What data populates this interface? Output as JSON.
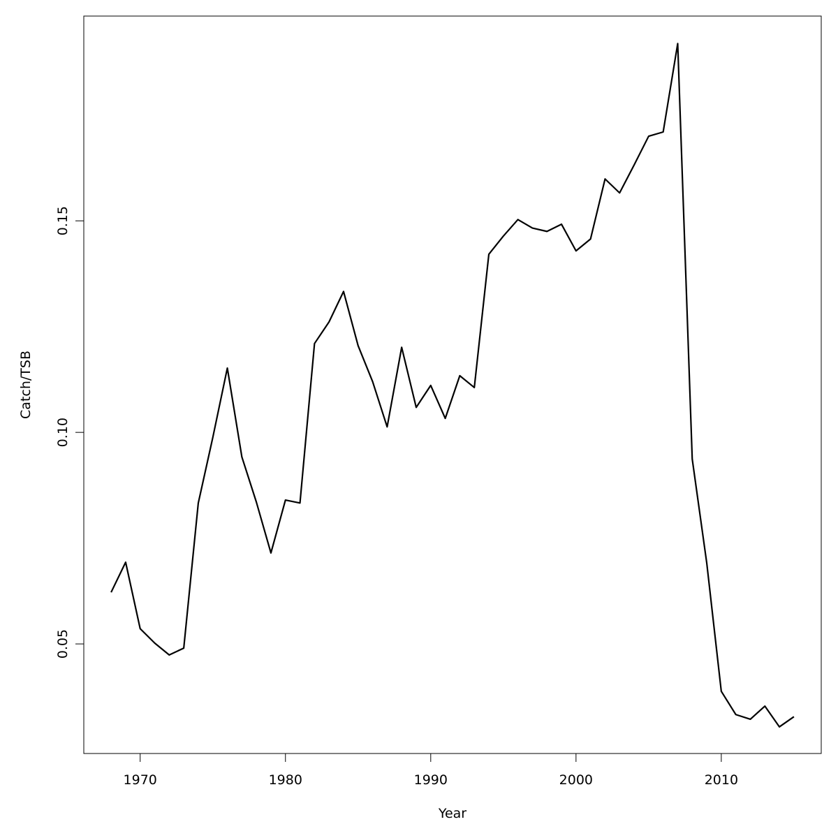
{
  "chart_data": {
    "type": "line",
    "xlabel": "Year",
    "ylabel": "Catch/TSB",
    "x": [
      1968,
      1969,
      1970,
      1971,
      1972,
      1973,
      1974,
      1975,
      1976,
      1977,
      1978,
      1979,
      1980,
      1981,
      1982,
      1983,
      1984,
      1985,
      1986,
      1987,
      1988,
      1989,
      1990,
      1991,
      1992,
      1993,
      1994,
      1995,
      1996,
      1997,
      1998,
      1999,
      2000,
      2001,
      2002,
      2003,
      2004,
      2005,
      2006,
      2007,
      2008,
      2009,
      2010,
      2011,
      2012,
      2013,
      2014,
      2015
    ],
    "series": [
      {
        "color": "#000000",
        "values": [
          0.0622,
          0.0693,
          0.0536,
          0.0502,
          0.0474,
          0.049,
          0.0833,
          0.0988,
          0.1152,
          0.0942,
          0.0835,
          0.0715,
          0.084,
          0.0833,
          0.121,
          0.1261,
          0.1333,
          0.1205,
          0.112,
          0.1013,
          0.1201,
          0.1059,
          0.1111,
          0.1033,
          0.1134,
          0.1106,
          0.1421,
          0.1464,
          0.1503,
          0.1483,
          0.1475,
          0.1492,
          0.1429,
          0.1457,
          0.1599,
          0.1566,
          0.1632,
          0.17,
          0.171,
          0.1919,
          0.0937,
          0.0691,
          0.0388,
          0.0333,
          0.0322,
          0.0353,
          0.0304,
          0.0328
        ]
      }
    ],
    "xlim": [
      1966.12,
      2016.88
    ],
    "xticks": [
      1970,
      1980,
      1990,
      2000,
      2010
    ],
    "ylim": [
      0.0241,
      0.1984
    ],
    "yticks": [
      0.05,
      {
        "value": 0.1,
        "label": "0.10"
      },
      0.15
    ]
  }
}
